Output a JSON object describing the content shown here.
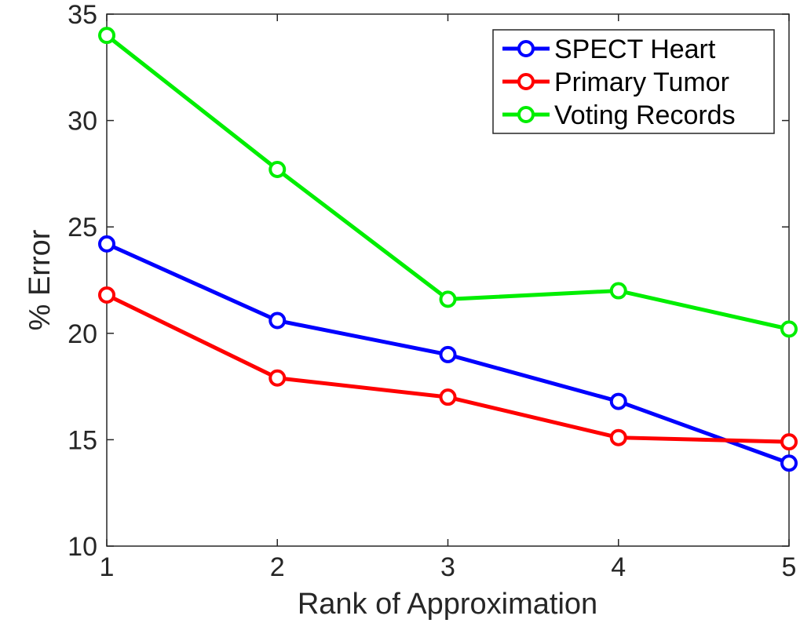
{
  "chart_data": {
    "type": "line",
    "xlabel": "Rank of Approximation",
    "ylabel": "% Error",
    "xlim": [
      1,
      5
    ],
    "ylim": [
      10,
      35
    ],
    "xticks": [
      "1",
      "2",
      "3",
      "4",
      "5"
    ],
    "yticks": [
      "10",
      "15",
      "20",
      "25",
      "30",
      "35"
    ],
    "grid": false,
    "legend_position": "top-right",
    "x": [
      1,
      2,
      3,
      4,
      5
    ],
    "series": [
      {
        "name": "SPECT Heart",
        "color": "#0000ff",
        "values": [
          24.2,
          20.6,
          19.0,
          16.8,
          13.9
        ]
      },
      {
        "name": "Primary Tumor",
        "color": "#ff0000",
        "values": [
          21.8,
          17.9,
          17.0,
          15.1,
          14.9
        ]
      },
      {
        "name": "Voting Records",
        "color": "#00ee00",
        "values": [
          34.0,
          27.7,
          21.6,
          22.0,
          20.2
        ]
      }
    ]
  }
}
